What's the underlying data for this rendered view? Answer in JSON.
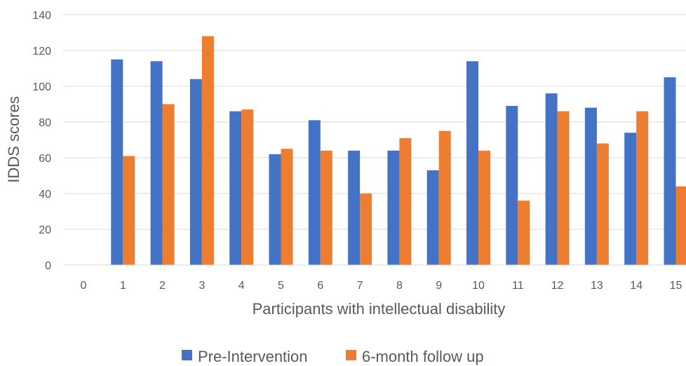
{
  "chart_data": {
    "type": "bar",
    "xlabel": "Participants with intellectual disability",
    "ylabel": "IDDS scores",
    "categories": [
      "0",
      "1",
      "2",
      "3",
      "4",
      "5",
      "6",
      "7",
      "8",
      "9",
      "10",
      "11",
      "12",
      "13",
      "14",
      "15"
    ],
    "yticks": [
      "0",
      "20",
      "40",
      "60",
      "80",
      "100",
      "120",
      "140"
    ],
    "ylim": [
      0,
      140
    ],
    "grid": true,
    "legend_position": "bottom",
    "series": [
      {
        "name": "Pre-Intervention",
        "color": "#4472C4",
        "values": [
          null,
          115,
          114,
          104,
          86,
          62,
          81,
          64,
          64,
          53,
          114,
          89,
          96,
          88,
          74,
          105
        ]
      },
      {
        "name": "6-month follow up",
        "color": "#ED7D31",
        "values": [
          null,
          61,
          90,
          128,
          87,
          65,
          64,
          40,
          71,
          75,
          64,
          36,
          86,
          68,
          86,
          44
        ]
      }
    ]
  }
}
